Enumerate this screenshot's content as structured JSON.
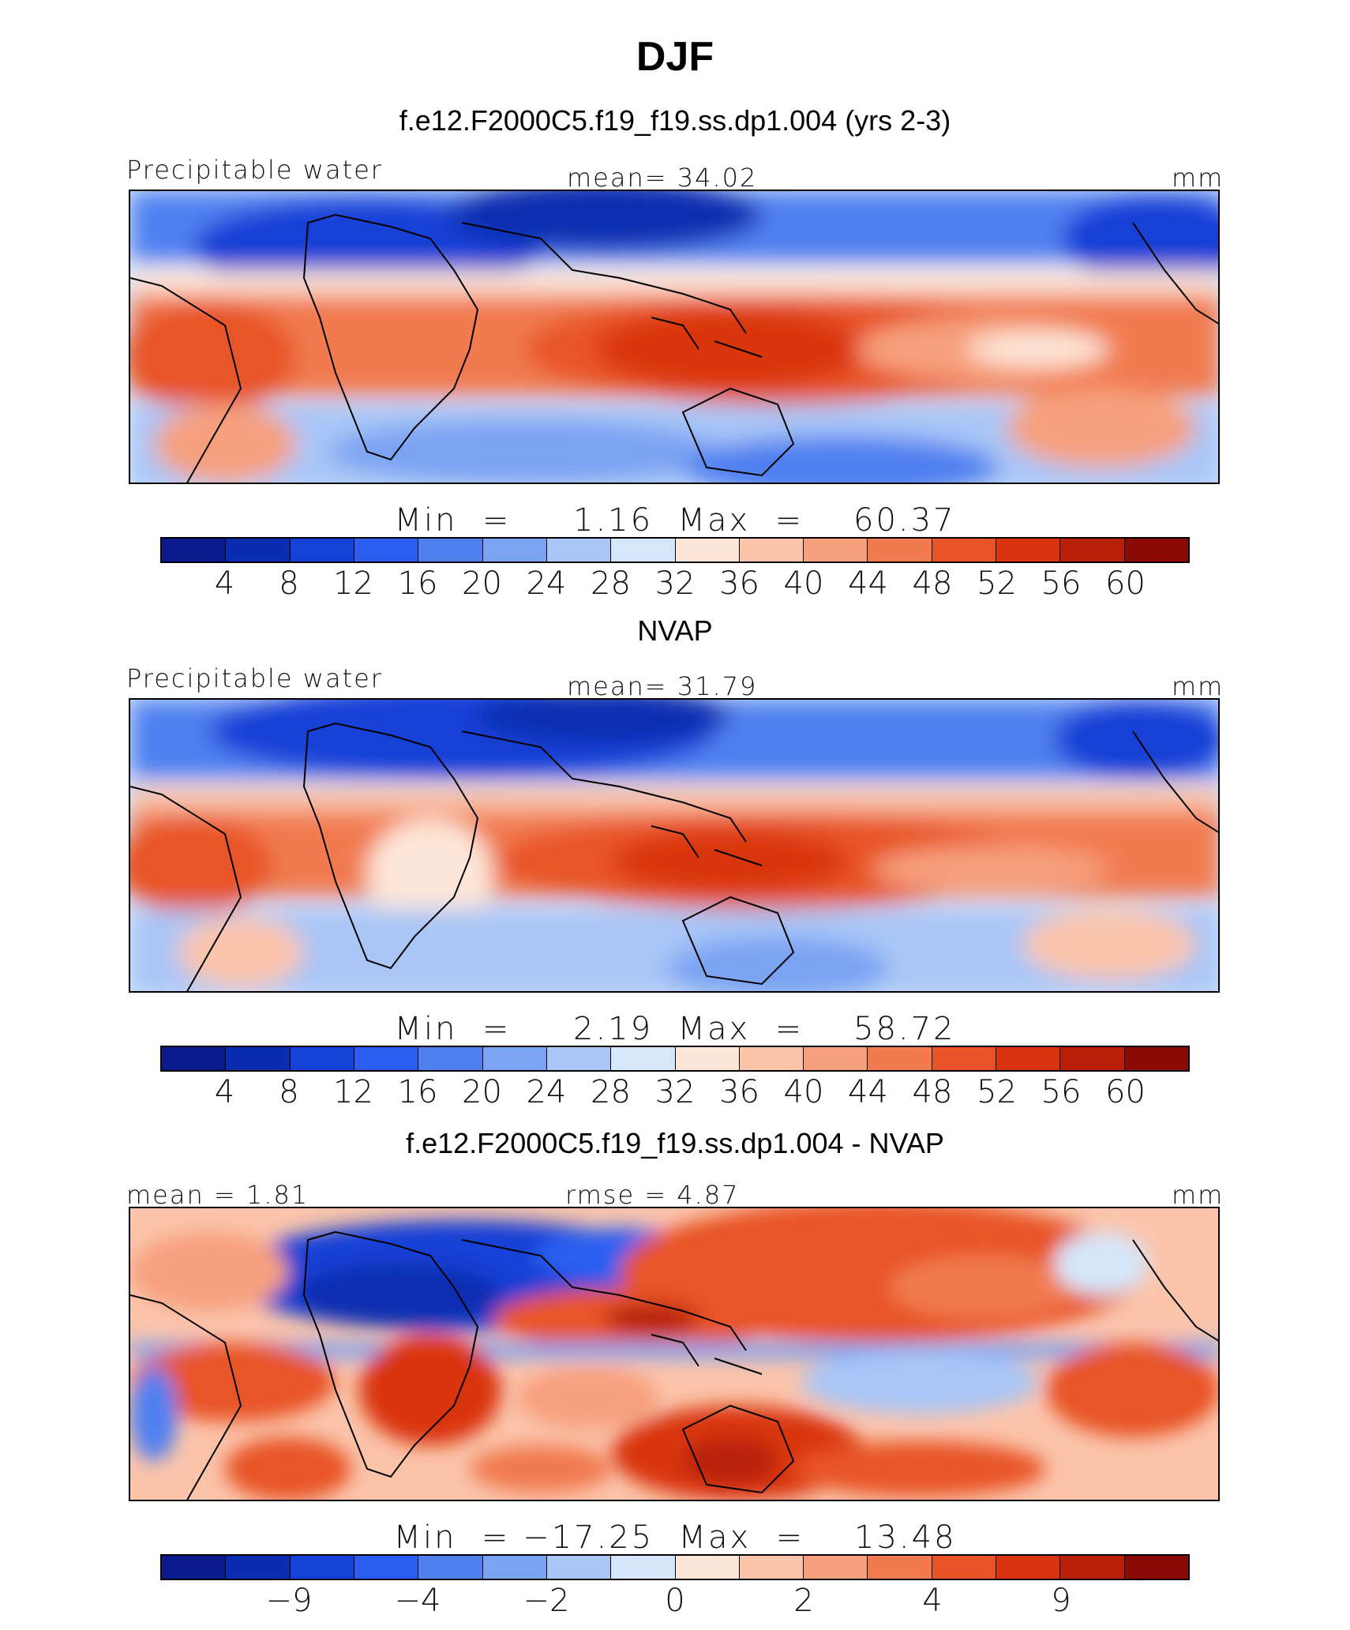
{
  "title": "DJF",
  "units": "mm",
  "palette": [
    "#0a1a8c",
    "#0a2db0",
    "#1441d6",
    "#2a5ef0",
    "#4f80f0",
    "#7aa3f2",
    "#a9c6f7",
    "#d6e6fb",
    "#fde6d8",
    "#fbc4ab",
    "#f7a07e",
    "#f17a4f",
    "#e85428",
    "#d93410",
    "#b8200a",
    "#8c0a06"
  ],
  "panels": [
    {
      "title": "f.e12.F2000C5.f19_f19.ss.dp1.004 (yrs 2-3)",
      "variable": "Precipitable water",
      "stat_left": "",
      "stat_mid": "mean=   34.02",
      "units": "mm",
      "min_max": "Min  =     1.16  Max  =    60.37",
      "ticks": [
        "4",
        "8",
        "12",
        "16",
        "20",
        "24",
        "28",
        "32",
        "36",
        "40",
        "44",
        "48",
        "52",
        "56",
        "60"
      ],
      "min": 1.16,
      "max": 60.37,
      "mean": 34.02
    },
    {
      "title": "NVAP",
      "variable": "Precipitable water",
      "stat_left": "",
      "stat_mid": "mean=   31.79",
      "units": "mm",
      "min_max": "Min  =     2.19  Max  =    58.72",
      "ticks": [
        "4",
        "8",
        "12",
        "16",
        "20",
        "24",
        "28",
        "32",
        "36",
        "40",
        "44",
        "48",
        "52",
        "56",
        "60"
      ],
      "min": 2.19,
      "max": 58.72,
      "mean": 31.79
    },
    {
      "title": "f.e12.F2000C5.f19_f19.ss.dp1.004 - NVAP",
      "variable": "",
      "stat_left": "mean =    1.81",
      "stat_mid": "rmse =    4.87",
      "units": "mm",
      "min_max": "Min  = −17.25  Max  =    13.48",
      "ticks": [
        "−9",
        "−4",
        "−2",
        "0",
        "2",
        "4",
        "9"
      ],
      "min": -17.25,
      "max": 13.48,
      "mean": 1.81,
      "rmse": 4.87
    }
  ]
}
